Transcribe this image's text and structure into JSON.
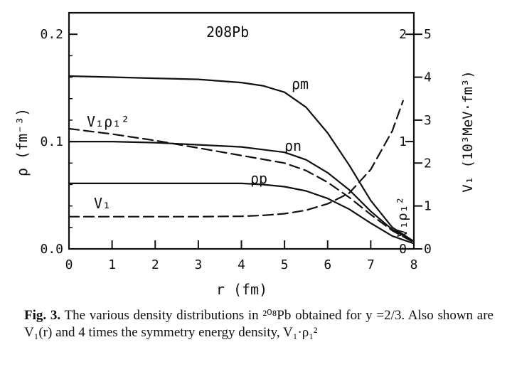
{
  "chart_data": {
    "type": "line",
    "nucleus": "208Pb",
    "xlabel": "r (fm)",
    "ylabel": "ρ (fm⁻³)",
    "ylabel_right_outer": "V₁ (10³MeV·fm³)",
    "ylabel_right_inner": "V₁ρ₁²",
    "xlim": [
      0,
      8
    ],
    "ylim": [
      0,
      0.22
    ],
    "right_inner_lim": [
      0,
      2.2
    ],
    "right_outer_lim": [
      0,
      5.5
    ],
    "x_ticks": [
      "0",
      "1",
      "2",
      "3",
      "4",
      "5",
      "6",
      "7",
      "8"
    ],
    "y_ticks": [
      "0.0",
      "0.1",
      "0.2"
    ],
    "right_inner_ticks": [
      "0",
      "1",
      "2"
    ],
    "right_outer_ticks": [
      "0",
      "1",
      "2",
      "3",
      "4",
      "5"
    ],
    "series": [
      {
        "name": "ρm",
        "style": "solid",
        "axis": "left",
        "x": [
          0,
          1,
          2,
          3,
          4,
          4.5,
          5,
          5.5,
          6,
          6.5,
          7,
          7.5,
          8
        ],
        "y": [
          0.161,
          0.16,
          0.159,
          0.158,
          0.155,
          0.152,
          0.146,
          0.132,
          0.108,
          0.078,
          0.045,
          0.02,
          0.007
        ]
      },
      {
        "name": "ρn",
        "style": "solid",
        "axis": "left",
        "x": [
          0,
          1,
          2,
          3,
          4,
          5,
          5.5,
          6,
          6.5,
          7,
          7.5,
          8
        ],
        "y": [
          0.1,
          0.1,
          0.099,
          0.097,
          0.095,
          0.09,
          0.083,
          0.071,
          0.055,
          0.035,
          0.018,
          0.007
        ]
      },
      {
        "name": "ρp",
        "style": "solid",
        "axis": "left",
        "x": [
          0,
          1,
          2,
          3,
          4,
          4.5,
          5,
          5.5,
          6,
          6.5,
          7,
          7.5,
          8
        ],
        "y": [
          0.061,
          0.061,
          0.061,
          0.061,
          0.061,
          0.06,
          0.058,
          0.054,
          0.047,
          0.037,
          0.024,
          0.012,
          0.005
        ]
      },
      {
        "name": "V₁ρ₁²",
        "style": "dashed",
        "axis": "right_inner",
        "x": [
          0,
          1,
          2,
          3,
          4,
          5,
          5.5,
          6,
          6.5,
          7,
          7.5,
          8
        ],
        "y": [
          1.12,
          1.07,
          1.01,
          0.94,
          0.87,
          0.8,
          0.73,
          0.62,
          0.48,
          0.32,
          0.17,
          0.06
        ]
      },
      {
        "name": "V₁",
        "style": "dashed",
        "axis": "right_outer",
        "x": [
          0,
          1,
          2,
          3,
          4,
          4.5,
          5,
          5.5,
          6,
          6.5,
          7,
          7.5,
          7.75
        ],
        "y": [
          0.75,
          0.75,
          0.75,
          0.75,
          0.76,
          0.78,
          0.82,
          0.9,
          1.05,
          1.3,
          1.85,
          2.75,
          3.45
        ]
      }
    ]
  },
  "caption": {
    "label": "Fig. 3.",
    "text": "The various density distributions in ²⁰⁸Pb obtained for y =2/3. Also shown are V₁(r) and 4 times the symmetry energy density, V₁·ρ₁²"
  }
}
